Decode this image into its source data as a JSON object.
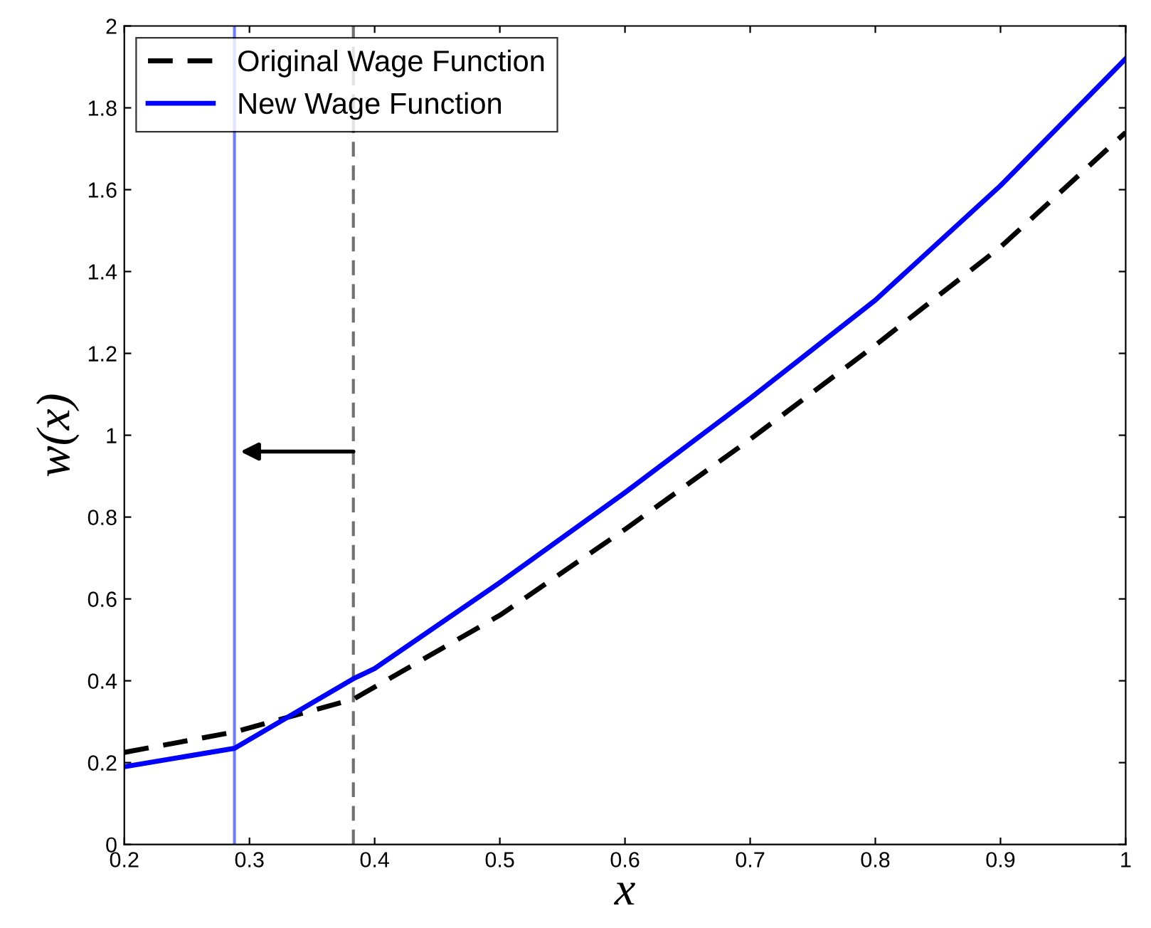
{
  "chart_data": {
    "type": "line",
    "xlabel": "x",
    "ylabel": "w(x)",
    "x": [
      0.2,
      0.288,
      0.383,
      0.5,
      0.6,
      0.7,
      0.8,
      0.9,
      1.0
    ],
    "series": [
      {
        "name": "Original Wage Function",
        "color": "#000000",
        "line_style": "dashed",
        "values": [
          0.225,
          0.275,
          0.355,
          0.56,
          0.77,
          0.99,
          1.22,
          1.46,
          1.74
        ]
      },
      {
        "name": "New Wage Function",
        "color": "#0000ff",
        "line_style": "solid",
        "x": [
          0.2,
          0.288,
          0.383,
          0.4,
          0.5,
          0.6,
          0.7,
          0.8,
          0.9,
          1.0
        ],
        "values": [
          0.19,
          0.235,
          0.405,
          0.43,
          0.64,
          0.86,
          1.09,
          1.33,
          1.61,
          1.92
        ]
      }
    ],
    "ref_lines": [
      {
        "axis": "x",
        "value": 0.288,
        "color": "#6f7dff",
        "line_style": "solid"
      },
      {
        "axis": "x",
        "value": 0.383,
        "color": "#707070",
        "line_style": "dashed"
      }
    ],
    "xlim": [
      0.2,
      1
    ],
    "ylim": [
      0,
      2
    ],
    "xticks": [
      0.2,
      0.3,
      0.4,
      0.5,
      0.6,
      0.7,
      0.8,
      0.9,
      1
    ],
    "yticks": [
      0,
      0.2,
      0.4,
      0.6,
      0.8,
      1,
      1.2,
      1.4,
      1.6,
      1.8,
      2
    ],
    "legend": "top left",
    "grid": false
  }
}
